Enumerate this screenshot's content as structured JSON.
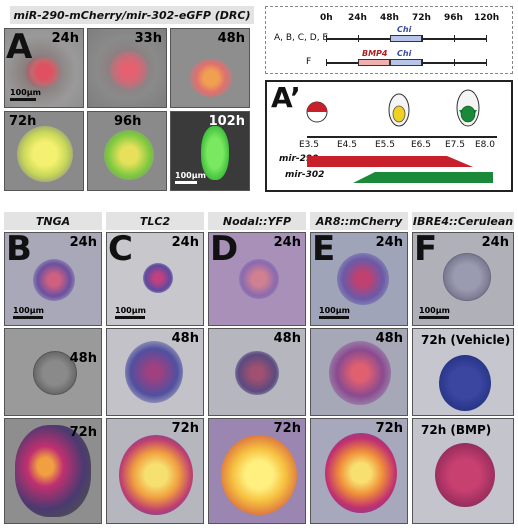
{
  "panel_a": {
    "header": "miR-290-mCherry/mir-302-eGFP (DRC)",
    "letter": "A",
    "scale_top": "100µm",
    "scale_bottom": "100µm",
    "times": [
      "24h",
      "33h",
      "48h",
      "72h",
      "96h",
      "102h"
    ]
  },
  "timeline": {
    "ticks": [
      "0h",
      "24h",
      "48h",
      "72h",
      "96h",
      "120h"
    ],
    "row1_label": "A, B, C, D, E",
    "row2_label": "F",
    "chi": "Chi",
    "chi2": "Chi",
    "bmp4": "BMP4"
  },
  "panel_a_prime": {
    "letter": "A’",
    "stages": [
      "E3.5",
      "E4.5",
      "E5.5",
      "E6.5",
      "E7.5",
      "E8.0"
    ],
    "mir290": "mir-290",
    "mir302": "mir-302",
    "red": "#c8202a",
    "green": "#1a8a3a"
  },
  "bottom": {
    "headers": [
      "TNGA",
      "TLC2",
      "Nodal::YFP",
      "AR8::mCherry",
      "IBRE4::Cerulean"
    ],
    "letters": [
      "B",
      "C",
      "D",
      "E",
      "F"
    ],
    "scale": "100µm",
    "t24": "24h",
    "t48": "48h",
    "t72": "72h",
    "t72_vehicle": "72h (Vehicle)",
    "t72_bmp": "72h (BMP)"
  }
}
